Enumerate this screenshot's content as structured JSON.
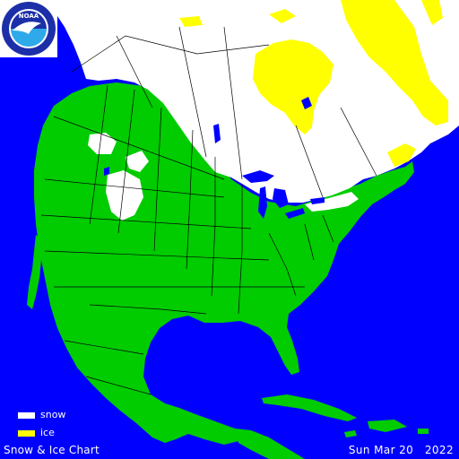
{
  "chart": {
    "title": "Snow & Ice Chart",
    "date": "Sun Mar 20   2022"
  },
  "legend": {
    "items": [
      {
        "label": "snow",
        "color": "#ffffff"
      },
      {
        "label": "ice",
        "color": "#ffff00"
      }
    ]
  },
  "logo": {
    "text": "NOAA",
    "colors": {
      "ring": "#ffffff",
      "top": "#1c2fa8",
      "bottom": "#2ea9ea",
      "bird": "#ffffff"
    }
  },
  "colors": {
    "water": "#0000ff",
    "land": "#00cc00",
    "snow": "#ffffff",
    "ice": "#ffff00",
    "borders": "#000000"
  }
}
